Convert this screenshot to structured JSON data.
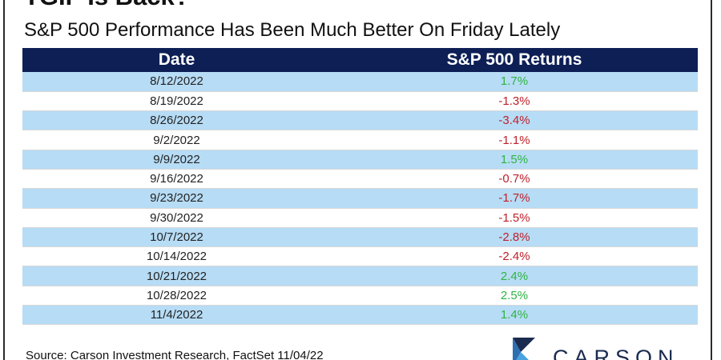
{
  "title": "TGIF Is Back?",
  "subtitle": "S&P 500 Performance Has Been Much Better On Friday Lately",
  "source": "Source: Carson Investment Research, FactSet 11/04/22",
  "logo_text": "CARSON",
  "colors": {
    "header_bg": "#0d1f55",
    "band": "#b7dcf5",
    "positive": "#2fb344",
    "negative": "#c0202a"
  },
  "chart_data": {
    "type": "table",
    "title": "TGIF Is Back?",
    "subtitle": "S&P 500 Performance Has Been Much Better On Friday Lately",
    "columns": [
      "Date",
      "S&P 500 Returns"
    ],
    "rows": [
      {
        "date": "8/12/2022",
        "return": "1.7%",
        "value": 1.7
      },
      {
        "date": "8/19/2022",
        "return": "-1.3%",
        "value": -1.3
      },
      {
        "date": "8/26/2022",
        "return": "-3.4%",
        "value": -3.4
      },
      {
        "date": "9/2/2022",
        "return": "-1.1%",
        "value": -1.1
      },
      {
        "date": "9/9/2022",
        "return": "1.5%",
        "value": 1.5
      },
      {
        "date": "9/16/2022",
        "return": "-0.7%",
        "value": -0.7
      },
      {
        "date": "9/23/2022",
        "return": "-1.7%",
        "value": -1.7
      },
      {
        "date": "9/30/2022",
        "return": "-1.5%",
        "value": -1.5
      },
      {
        "date": "10/7/2022",
        "return": "-2.8%",
        "value": -2.8
      },
      {
        "date": "10/14/2022",
        "return": "-2.4%",
        "value": -2.4
      },
      {
        "date": "10/21/2022",
        "return": "2.4%",
        "value": 2.4
      },
      {
        "date": "10/28/2022",
        "return": "2.5%",
        "value": 2.5
      },
      {
        "date": "11/4/2022",
        "return": "1.4%",
        "value": 1.4
      }
    ]
  }
}
